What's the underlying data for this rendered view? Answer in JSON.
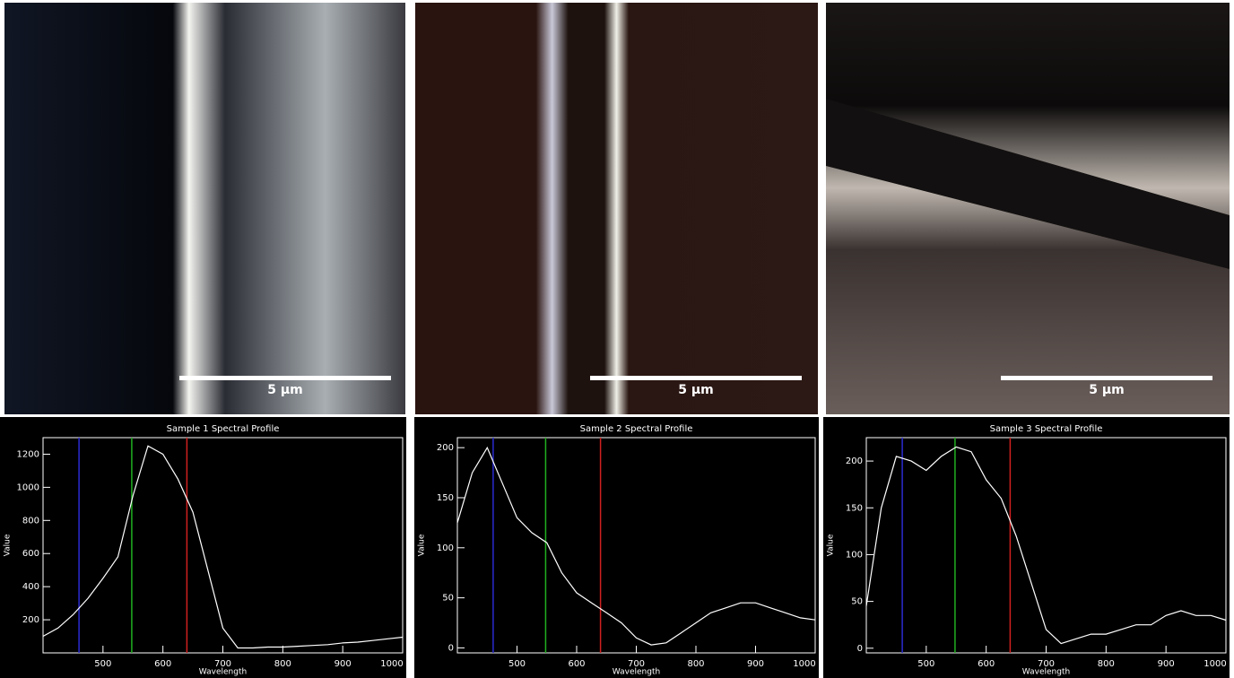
{
  "images": [
    {
      "scale_bar": "5 µm"
    },
    {
      "scale_bar": "5 µm"
    },
    {
      "scale_bar": "5 µm"
    }
  ],
  "chart_data": [
    {
      "type": "line",
      "title": "Sample 1 Spectral Profile",
      "x_label": "Wavelength",
      "y_label": "Value",
      "x": [
        400,
        425,
        450,
        475,
        500,
        525,
        550,
        575,
        600,
        625,
        650,
        675,
        700,
        725,
        750,
        775,
        800,
        825,
        850,
        875,
        900,
        925,
        950,
        975,
        1000
      ],
      "series": [
        {
          "color": "#ffffff",
          "values": [
            100,
            150,
            230,
            330,
            450,
            580,
            950,
            1250,
            1200,
            1050,
            850,
            500,
            150,
            30,
            30,
            35,
            35,
            40,
            45,
            50,
            60,
            65,
            75,
            85,
            95
          ]
        }
      ],
      "vlines": [
        {
          "value": 460,
          "color": "#2a2ad0"
        },
        {
          "value": 548,
          "color": "#20b020"
        },
        {
          "value": 640,
          "color": "#d02020"
        }
      ],
      "xlim": [
        400,
        1000
      ],
      "xticks": [
        500,
        600,
        700,
        800,
        900,
        1000
      ],
      "ylim": [
        0,
        1300
      ],
      "yticks": [
        200,
        400,
        600,
        800,
        1000,
        1200
      ]
    },
    {
      "type": "line",
      "title": "Sample 2 Spectral Profile",
      "x_label": "Wavelength",
      "y_label": "Value",
      "x": [
        400,
        425,
        450,
        475,
        500,
        525,
        550,
        575,
        600,
        625,
        650,
        675,
        700,
        725,
        750,
        775,
        800,
        825,
        850,
        875,
        900,
        925,
        950,
        975,
        1000
      ],
      "series": [
        {
          "color": "#ffffff",
          "values": [
            125,
            175,
            200,
            165,
            130,
            115,
            105,
            75,
            55,
            45,
            35,
            25,
            10,
            3,
            5,
            15,
            25,
            35,
            40,
            45,
            45,
            40,
            35,
            30,
            28
          ]
        }
      ],
      "vlines": [
        {
          "value": 460,
          "color": "#2a2ad0"
        },
        {
          "value": 548,
          "color": "#20b020"
        },
        {
          "value": 640,
          "color": "#d02020"
        }
      ],
      "xlim": [
        400,
        1000
      ],
      "xticks": [
        500,
        600,
        700,
        800,
        900,
        1000
      ],
      "ylim": [
        -5,
        210
      ],
      "yticks": [
        0,
        50,
        100,
        150,
        200
      ]
    },
    {
      "type": "line",
      "title": "Sample 3 Spectral Profile",
      "x_label": "Wavelength",
      "y_label": "Value",
      "x": [
        400,
        425,
        450,
        475,
        500,
        525,
        550,
        575,
        600,
        625,
        650,
        675,
        700,
        725,
        750,
        775,
        800,
        825,
        850,
        875,
        900,
        925,
        950,
        975,
        1000
      ],
      "series": [
        {
          "color": "#ffffff",
          "values": [
            45,
            150,
            205,
            200,
            190,
            205,
            215,
            210,
            180,
            160,
            120,
            70,
            20,
            5,
            10,
            15,
            15,
            20,
            25,
            25,
            35,
            40,
            35,
            35,
            30
          ]
        }
      ],
      "vlines": [
        {
          "value": 460,
          "color": "#2a2ad0"
        },
        {
          "value": 548,
          "color": "#20b020"
        },
        {
          "value": 640,
          "color": "#d02020"
        }
      ],
      "xlim": [
        400,
        1000
      ],
      "xticks": [
        500,
        600,
        700,
        800,
        900,
        1000
      ],
      "ylim": [
        -5,
        225
      ],
      "yticks": [
        0,
        50,
        100,
        150,
        200
      ]
    }
  ]
}
